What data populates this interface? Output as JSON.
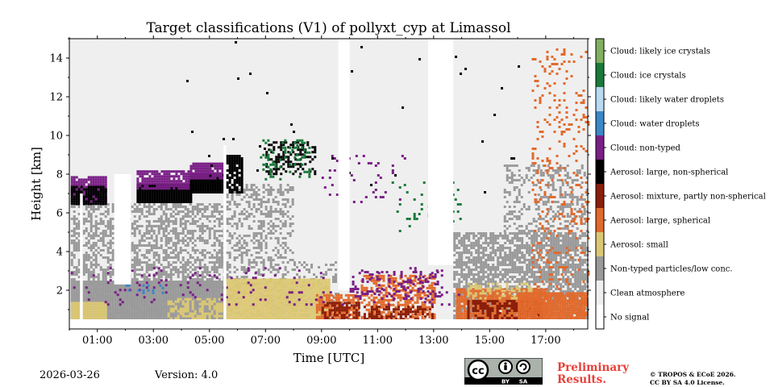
{
  "chart_data": {
    "type": "heatmap",
    "title": "Target classifications (V1) of pollyxt_cyp at Limassol",
    "xlabel": "Time [UTC]",
    "ylabel": "Height [km]",
    "xlim": [
      0,
      18.5
    ],
    "ylim": [
      0,
      15
    ],
    "x_ticks": [
      {
        "value": 1,
        "label": "01:00"
      },
      {
        "value": 3,
        "label": "03:00"
      },
      {
        "value": 5,
        "label": "05:00"
      },
      {
        "value": 7,
        "label": "07:00"
      },
      {
        "value": 9,
        "label": "09:00"
      },
      {
        "value": 11,
        "label": "11:00"
      },
      {
        "value": 13,
        "label": "13:00"
      },
      {
        "value": 15,
        "label": "15:00"
      },
      {
        "value": 17,
        "label": "17:00"
      }
    ],
    "y_ticks": [
      {
        "value": 2,
        "label": "2"
      },
      {
        "value": 4,
        "label": "4"
      },
      {
        "value": 6,
        "label": "6"
      },
      {
        "value": 8,
        "label": "8"
      },
      {
        "value": 10,
        "label": "10"
      },
      {
        "value": 12,
        "label": "12"
      },
      {
        "value": 14,
        "label": "14"
      }
    ],
    "classes": [
      {
        "label": "Cloud: likely ice crystals",
        "color": "#80b060"
      },
      {
        "label": "Cloud: ice crystals",
        "color": "#1a7a3a"
      },
      {
        "label": "Cloud: likely water droplets",
        "color": "#b8daf2"
      },
      {
        "label": "Cloud: water droplets",
        "color": "#3b88c8"
      },
      {
        "label": "Cloud: non-typed",
        "color": "#7a1f86"
      },
      {
        "label": "Aerosol: large, non-spherical",
        "color": "#000000"
      },
      {
        "label": "Aerosol: mixture, partly non-spherical",
        "color": "#8a1e0a"
      },
      {
        "label": "Aerosol: large, spherical",
        "color": "#e26a2c"
      },
      {
        "label": "Aerosol: small",
        "color": "#dcc874"
      },
      {
        "label": "Non-typed particles/low conc.",
        "color": "#9a9a9a"
      },
      {
        "label": "Clean atmosphere",
        "color": "#efefef"
      },
      {
        "label": "No signal",
        "color": "#ffffff"
      }
    ],
    "regions": [
      {
        "cls": 10,
        "x": [
          0,
          18.5
        ],
        "y": [
          0,
          15
        ]
      },
      {
        "cls": 9,
        "x": [
          0.05,
          5.5
        ],
        "y": [
          0.5,
          6.5
        ],
        "density": 0.55
      },
      {
        "cls": 9,
        "x": [
          5.6,
          8.0
        ],
        "y": [
          0.5,
          7.5
        ],
        "density": 0.35
      },
      {
        "cls": 9,
        "x": [
          8.0,
          9.6
        ],
        "y": [
          0.5,
          3.5
        ],
        "density": 0.25
      },
      {
        "cls": 9,
        "x": [
          13.7,
          18.5
        ],
        "y": [
          0.5,
          5.0
        ],
        "density": 0.7
      },
      {
        "cls": 9,
        "x": [
          15.5,
          18.5
        ],
        "y": [
          5.0,
          8.5
        ],
        "density": 0.35
      },
      {
        "cls": 9,
        "x": [
          0.05,
          5.5
        ],
        "y": [
          0.5,
          2.5
        ],
        "density": 1.0
      },
      {
        "cls": 8,
        "x": [
          0.05,
          1.3
        ],
        "y": [
          0.5,
          1.4
        ],
        "density": 1.0
      },
      {
        "cls": 8,
        "x": [
          3.5,
          5.4
        ],
        "y": [
          0.5,
          1.6
        ],
        "density": 0.6
      },
      {
        "cls": 8,
        "x": [
          5.6,
          9.3
        ],
        "y": [
          0.5,
          2.6
        ],
        "density": 1.0
      },
      {
        "cls": 7,
        "x": [
          8.8,
          10.3
        ],
        "y": [
          0.5,
          1.8
        ],
        "density": 0.8
      },
      {
        "cls": 6,
        "x": [
          9.0,
          10.3
        ],
        "y": [
          0.5,
          1.4
        ],
        "density": 0.6
      },
      {
        "cls": 7,
        "x": [
          10.4,
          13.0
        ],
        "y": [
          0.5,
          2.8
        ],
        "density": 0.55
      },
      {
        "cls": 6,
        "x": [
          10.5,
          13.0
        ],
        "y": [
          0.5,
          1.2
        ],
        "density": 0.5
      },
      {
        "cls": 4,
        "x": [
          10.0,
          13.2
        ],
        "y": [
          1.5,
          3.0
        ],
        "density": 0.2
      },
      {
        "cls": 7,
        "x": [
          13.8,
          17.0
        ],
        "y": [
          0.5,
          2.1
        ],
        "density": 0.9
      },
      {
        "cls": 6,
        "x": [
          14.2,
          16.8
        ],
        "y": [
          0.5,
          1.5
        ],
        "density": 0.6
      },
      {
        "cls": 8,
        "x": [
          14.2,
          16.5
        ],
        "y": [
          1.6,
          2.4
        ],
        "density": 0.4
      },
      {
        "cls": 7,
        "x": [
          16.0,
          18.5
        ],
        "y": [
          0.5,
          1.9
        ],
        "density": 0.95
      },
      {
        "cls": 7,
        "x": [
          16.5,
          18.5
        ],
        "y": [
          2.0,
          14.5
        ],
        "density": 0.12
      },
      {
        "cls": 4,
        "x": [
          0.05,
          1.3
        ],
        "y": [
          6.6,
          7.9
        ],
        "density": 0.9
      },
      {
        "cls": 5,
        "x": [
          0.05,
          1.3
        ],
        "y": [
          6.5,
          7.4
        ],
        "density": 0.9
      },
      {
        "cls": 5,
        "x": [
          2.4,
          4.3
        ],
        "y": [
          6.5,
          7.5
        ],
        "density": 1.0
      },
      {
        "cls": 4,
        "x": [
          2.4,
          4.3
        ],
        "y": [
          7.3,
          8.2
        ],
        "density": 0.9
      },
      {
        "cls": 5,
        "x": [
          4.3,
          5.5
        ],
        "y": [
          7.0,
          8.0
        ],
        "density": 1.0
      },
      {
        "cls": 4,
        "x": [
          4.3,
          5.5
        ],
        "y": [
          7.8,
          8.6
        ],
        "density": 0.9
      },
      {
        "cls": 5,
        "x": [
          5.6,
          6.2
        ],
        "y": [
          7.0,
          9.0
        ],
        "density": 0.8
      },
      {
        "cls": 5,
        "x": [
          7.0,
          8.8
        ],
        "y": [
          8.0,
          9.7
        ],
        "density": 0.35
      },
      {
        "cls": 1,
        "x": [
          6.8,
          8.6
        ],
        "y": [
          7.8,
          9.8
        ],
        "density": 0.2
      },
      {
        "cls": 4,
        "x": [
          9.0,
          12.0
        ],
        "y": [
          6.5,
          9.0
        ],
        "density": 0.06
      },
      {
        "cls": 1,
        "x": [
          11.5,
          14.0
        ],
        "y": [
          5.0,
          8.0
        ],
        "density": 0.08
      },
      {
        "cls": 4,
        "x": [
          0.05,
          14.0
        ],
        "y": [
          1.2,
          3.2
        ],
        "density": 0.05
      },
      {
        "cls": 3,
        "x": [
          2.0,
          3.5
        ],
        "y": [
          1.8,
          2.3
        ],
        "density": 0.2
      },
      {
        "cls": 5,
        "x": [
          4.0,
          16.0
        ],
        "y": [
          6.0,
          15.0
        ],
        "density": 0.004
      }
    ],
    "gaps": [
      {
        "x": [
          0.38,
          0.48
        ],
        "y": [
          0.5,
          7.0
        ]
      },
      {
        "x": [
          1.6,
          2.2
        ],
        "y": [
          2.3,
          8.0
        ]
      },
      {
        "x": [
          5.5,
          5.6
        ],
        "y": [
          0.5,
          9.5
        ]
      },
      {
        "x": [
          9.6,
          10.0
        ],
        "y": [
          2.0,
          15.0
        ]
      },
      {
        "x": [
          12.8,
          13.7
        ],
        "y": [
          3.3,
          15.0
        ]
      }
    ]
  },
  "footer": {
    "date": "2026-03-26",
    "version": "Version: 4.0",
    "preliminary": "Preliminary Results.",
    "copyright_1": "© TROPOS & ECoE 2026.",
    "copyright_2": "CC BY SA 4.0 License.",
    "cc_mark": "cc",
    "cc_by": "BY",
    "cc_sa": "SA"
  }
}
